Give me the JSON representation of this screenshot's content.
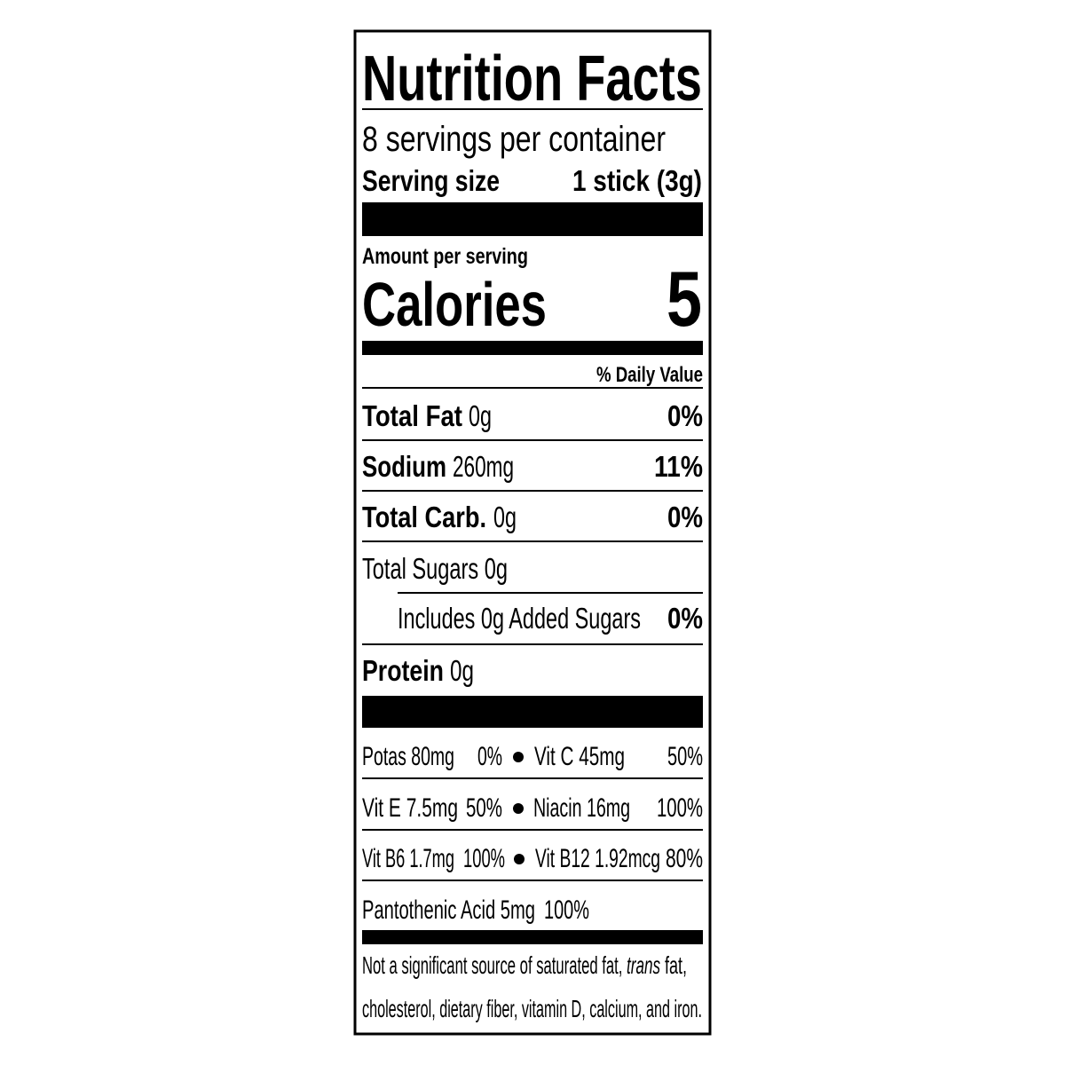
{
  "title": "Nutrition Facts",
  "servings_per_container": "8 servings per container",
  "serving_size": {
    "label": "Serving size",
    "value": "1 stick (3g)"
  },
  "amount_per_serving": "Amount per serving",
  "calories": {
    "label": "Calories",
    "value": "5"
  },
  "daily_value_header": "% Daily Value",
  "nutrients": [
    {
      "name": "Total Fat",
      "amount": "0g",
      "dv": "0%"
    },
    {
      "name": "Sodium",
      "amount": "260mg",
      "dv": "11%"
    },
    {
      "name": "Total Carb.",
      "amount": "0g",
      "dv": "0%"
    },
    {
      "name": "Total Sugars 0g"
    },
    {
      "name": "Includes 0g Added Sugars",
      "dv": "0%"
    },
    {
      "name": "Protein",
      "amount": "0g"
    }
  ],
  "vitamins": [
    [
      "Potas 80mg",
      "0%",
      "Vit C  45mg",
      "50%"
    ],
    [
      "Vit E  7.5mg",
      "50%",
      "Niacin 16mg",
      "100%"
    ],
    [
      "Vit B6 1.7mg",
      "100%",
      "Vit B12 1.92mcg",
      "80%"
    ],
    [
      "Pantothenic Acid 5mg",
      "100%"
    ]
  ],
  "footnote": {
    "line1": [
      "Not a significant source of saturated fat, ",
      "trans",
      " fat,"
    ],
    "line2": "cholesterol, dietary fiber, vitamin D, calcium, and iron."
  }
}
